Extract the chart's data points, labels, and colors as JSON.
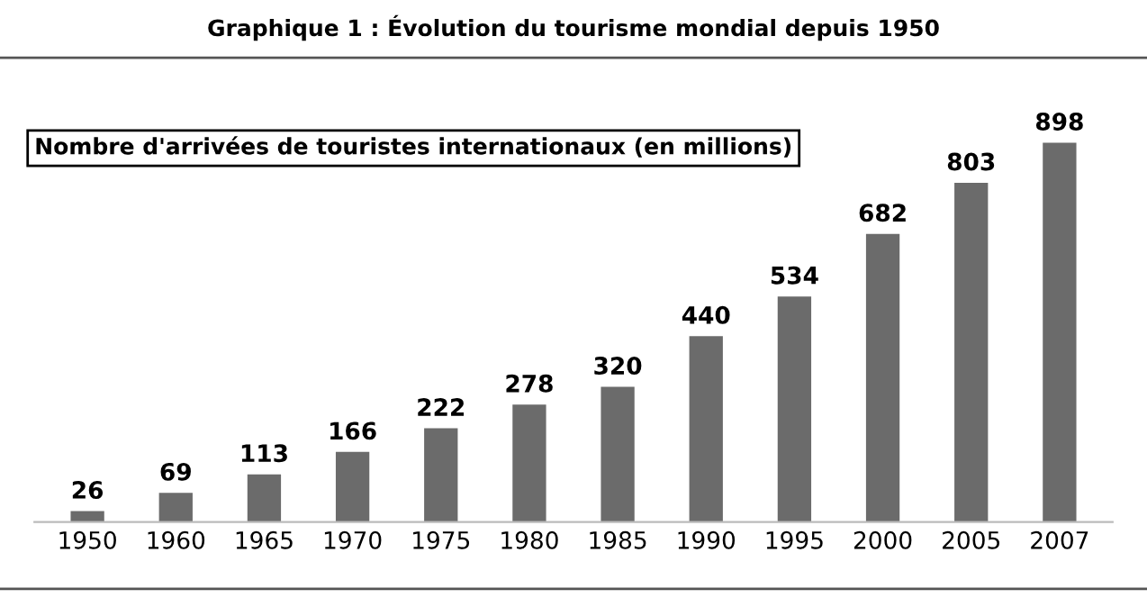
{
  "chart_data": {
    "type": "bar",
    "title": "Graphique 1 : Évolution du tourisme mondial depuis 1950",
    "annotations": [
      "Nombre d'arrivées de touristes internationaux (en millions)"
    ],
    "categories": [
      "1950",
      "1960",
      "1965",
      "1970",
      "1975",
      "1980",
      "1985",
      "1990",
      "1995",
      "2000",
      "2005",
      "2007"
    ],
    "values": [
      26,
      69,
      113,
      166,
      222,
      278,
      320,
      440,
      534,
      682,
      803,
      898
    ],
    "color": "#6b6b6b",
    "data_labels": true,
    "grid": false,
    "legend": false
  }
}
